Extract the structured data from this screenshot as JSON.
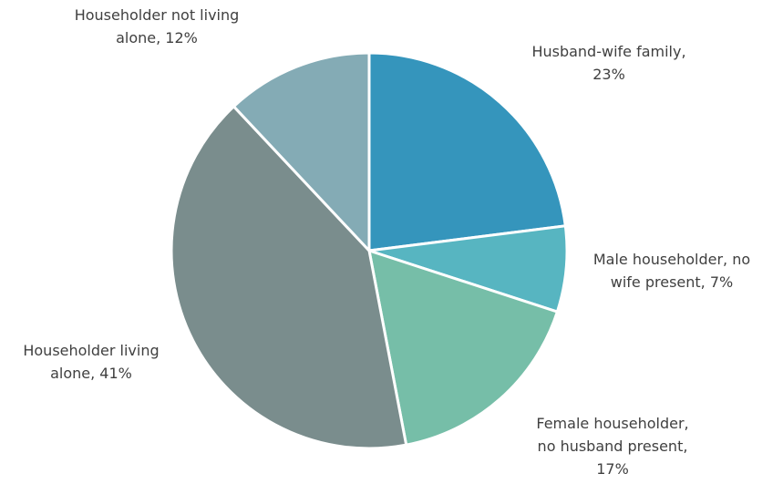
{
  "chart_data": {
    "type": "pie",
    "values": [
      23,
      7,
      17,
      41,
      12
    ],
    "value_labels": [
      "Husband-wife family, 23%",
      "Male householder, no wife present, 7%",
      "Female householder, no husband present, 17%",
      "Householder living alone, 41%",
      "Householder not living alone, 12%"
    ],
    "colors": [
      "#3595bc",
      "#57b5c1",
      "#76bea8",
      "#7a8d8d",
      "#84abb5"
    ]
  }
}
